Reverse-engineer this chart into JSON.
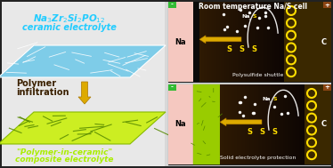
{
  "bg_color": "#d8d8d8",
  "border_color": "#222222",
  "ceramic_color": "#7ecce8",
  "composite_fill": "#ccee22",
  "composite_edge": "#88bb00",
  "composite_dark": "#558800",
  "crack_color_blue": "#ffffff",
  "crack_color_green": "#669900",
  "text_cyan": "#22ccff",
  "text_green": "#aaee00",
  "text_dark_brown": "#3a2000",
  "arrow_yellow": "#ddaa00",
  "anode_pink": "#f5c8c0",
  "sep_black": "#0a0a0a",
  "electrolyte_bg": "#1a0e00",
  "cathode_bg": "#3a2800",
  "cathode_dark": "#2a1800",
  "sulfur_yellow": "#ffdd00",
  "terminal_green": "#33bb33",
  "terminal_brown": "#8B4513",
  "white": "#ffffff",
  "cell_title": "Room temperature Na/S cell",
  "label_shuttle": "Polysulfide shuttle",
  "label_protection": "Solid electrolyte protection",
  "composite_green_cell": "#99cc00"
}
